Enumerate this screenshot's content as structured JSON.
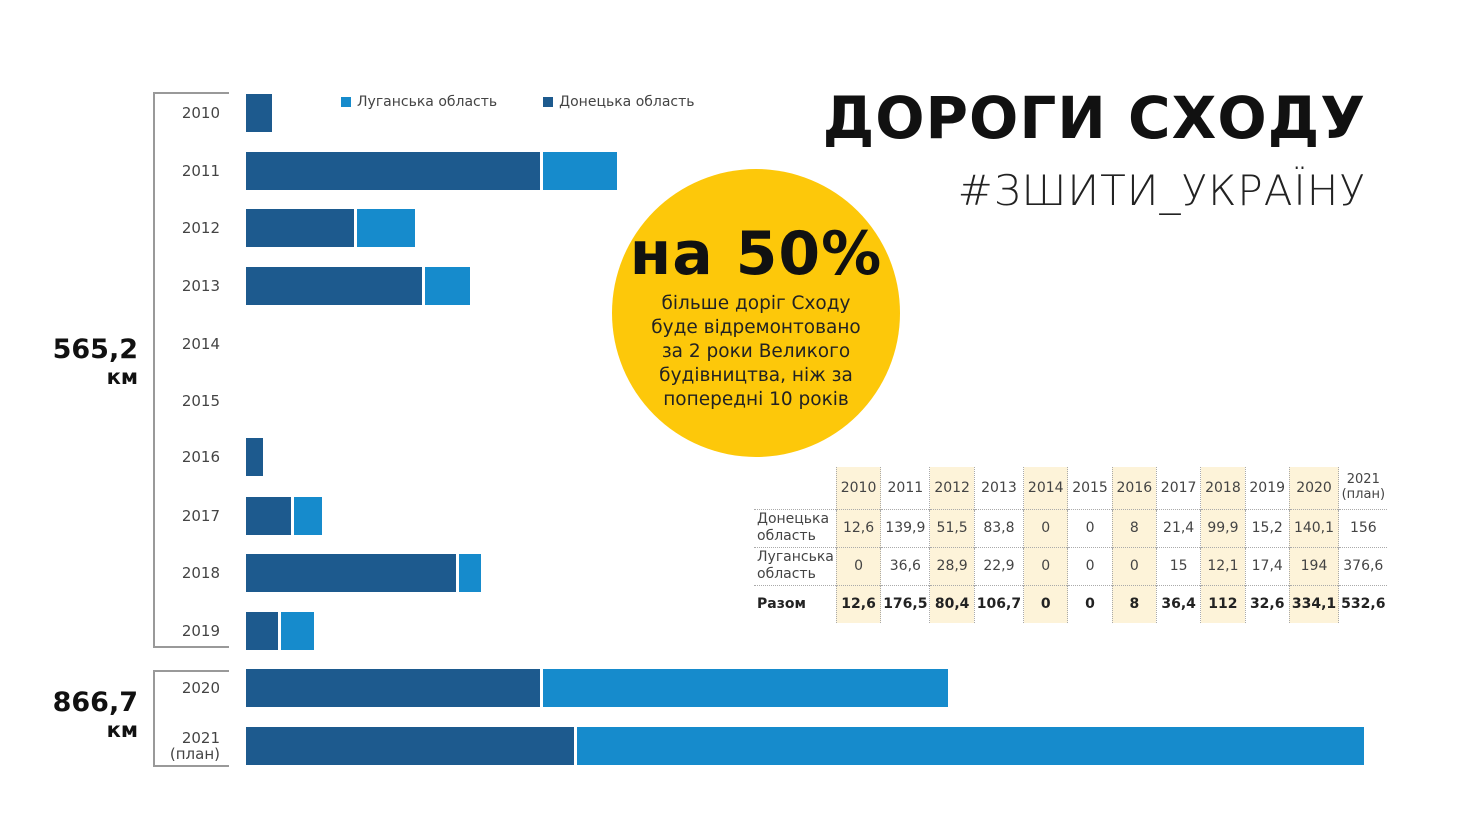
{
  "title": "ДОРОГИ СХОДУ",
  "subtitle": "#ЗШИТИ_УКРАЇНУ",
  "colors": {
    "donetsk": "#1d5a8e",
    "luhansk": "#168bcc",
    "highlight_circle": "#fdc80a",
    "table_highlight": "#fdf3d9"
  },
  "legend": [
    {
      "label": "Луганська область",
      "color": "#168bcc"
    },
    {
      "label": "Донецька область",
      "color": "#1d5a8e"
    }
  ],
  "totals": [
    {
      "value": "565,2",
      "unit": "км",
      "period": "2010–2019"
    },
    {
      "value": "866,7",
      "unit": "км",
      "period": "2020–2021"
    }
  ],
  "callout": {
    "headline": "на 50%",
    "lines": [
      "більше доріг Сходу",
      "буде відремонтовано",
      "за 2 роки Великого",
      "будівництва, ніж за",
      "попередні 10 років"
    ]
  },
  "table": {
    "headers": [
      "2010",
      "2011",
      "2012",
      "2013",
      "2014",
      "2015",
      "2016",
      "2017",
      "2018",
      "2019",
      "2020",
      "2021"
    ],
    "plan_note": "(план)",
    "rows": [
      {
        "label": [
          "Донецька",
          "область"
        ],
        "values": [
          "12,6",
          "139,9",
          "51,5",
          "83,8",
          "0",
          "0",
          "8",
          "21,4",
          "99,9",
          "15,2",
          "140,1",
          "156"
        ]
      },
      {
        "label": [
          "Луганська",
          "область"
        ],
        "values": [
          "0",
          "36,6",
          "28,9",
          "22,9",
          "0",
          "0",
          "0",
          "15",
          "12,1",
          "17,4",
          "194",
          "376,6"
        ]
      },
      {
        "label": [
          "Разом"
        ],
        "values": [
          "12,6",
          "176,5",
          "80,4",
          "106,7",
          "0",
          "0",
          "8",
          "36,4",
          "112",
          "32,6",
          "334,1",
          "532,6"
        ]
      }
    ]
  },
  "chart_data": {
    "type": "bar",
    "orientation": "horizontal",
    "stacked": true,
    "title": "ДОРОГИ СХОДУ",
    "subtitle": "#ЗШИТИ_УКРАЇНУ",
    "unit": "км",
    "categories": [
      "2010",
      "2011",
      "2012",
      "2013",
      "2014",
      "2015",
      "2016",
      "2017",
      "2018",
      "2019",
      "2020",
      "2021 (план)"
    ],
    "series": [
      {
        "name": "Донецька область",
        "color": "#1d5a8e",
        "values": [
          12.6,
          139.9,
          51.5,
          83.8,
          0,
          0,
          8,
          21.4,
          99.9,
          15.2,
          140.1,
          156
        ]
      },
      {
        "name": "Луганська область",
        "color": "#168bcc",
        "values": [
          0,
          36.6,
          28.9,
          22.9,
          0,
          0,
          0,
          15,
          12.1,
          17.4,
          194,
          376.6
        ]
      }
    ],
    "totals": [
      12.6,
      176.5,
      80.4,
      106.7,
      0,
      0,
      8,
      36.4,
      112,
      32.6,
      334.1,
      532.6
    ],
    "group_totals": [
      {
        "label": "565,2 км",
        "years": "2010–2019"
      },
      {
        "label": "866,7 км",
        "years": "2020–2021"
      }
    ],
    "legend_position": "top",
    "grid": false,
    "xlim": [
      0,
      532.6
    ]
  }
}
